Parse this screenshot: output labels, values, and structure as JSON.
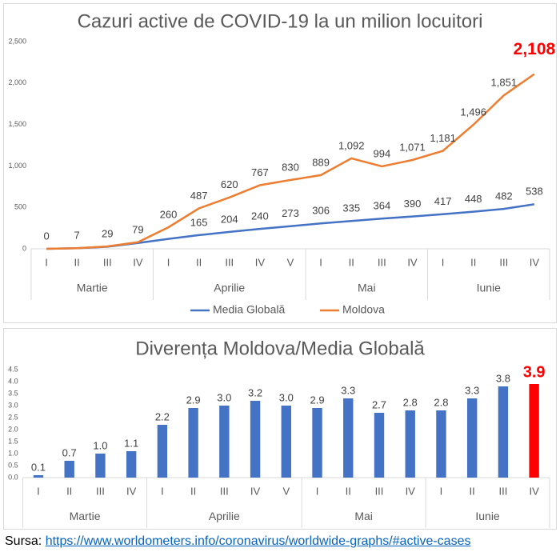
{
  "chart_data": [
    {
      "type": "line",
      "title": "Cazuri active de COVID-19 la un milion locuitori",
      "groups": [
        {
          "name": "Martie",
          "categories": [
            "I",
            "II",
            "III",
            "IV"
          ]
        },
        {
          "name": "Aprilie",
          "categories": [
            "I",
            "II",
            "III",
            "IV",
            "V"
          ]
        },
        {
          "name": "Mai",
          "categories": [
            "I",
            "II",
            "III",
            "IV"
          ]
        },
        {
          "name": "Iunie",
          "categories": [
            "I",
            "II",
            "III",
            "IV"
          ]
        }
      ],
      "series": [
        {
          "name": "Media Globală",
          "color": "#4472c4",
          "values": [
            0,
            7,
            25,
            70,
            120,
            165,
            204,
            240,
            273,
            306,
            335,
            364,
            390,
            417,
            448,
            482,
            538
          ],
          "value_labels": [
            null,
            null,
            null,
            null,
            null,
            "165",
            "204",
            "240",
            "273",
            "306",
            "335",
            "364",
            "390",
            "417",
            "448",
            "482",
            "538"
          ]
        },
        {
          "name": "Moldova",
          "color": "#ed7d31",
          "values": [
            0,
            7,
            29,
            79,
            260,
            487,
            620,
            767,
            830,
            889,
            1092,
            994,
            1071,
            1181,
            1496,
            1851,
            2108
          ],
          "value_labels": [
            "0",
            "7",
            "29",
            "79",
            "260",
            "487",
            "620",
            "767",
            "830",
            "889",
            "1,092",
            "994",
            "1,071",
            "1,181",
            "1,496",
            "1,851",
            "2,108"
          ]
        }
      ],
      "highlight_color": "#ff0000",
      "ylim": [
        0,
        2500
      ],
      "yticks": [
        0,
        500,
        {
          "value": 1000,
          "label": "1,000"
        },
        {
          "value": 1500,
          "label": "1,500"
        },
        {
          "value": 2000,
          "label": "2,000"
        },
        {
          "value": 2500,
          "label": "2,500"
        }
      ],
      "grid": false,
      "legend": "bottom"
    },
    {
      "type": "bar",
      "title": "Diverența Moldova/Media Globală",
      "groups": [
        {
          "name": "Martie",
          "categories": [
            "I",
            "II",
            "III",
            "IV"
          ]
        },
        {
          "name": "Aprilie",
          "categories": [
            "I",
            "II",
            "III",
            "IV",
            "V"
          ]
        },
        {
          "name": "Mai",
          "categories": [
            "I",
            "II",
            "III",
            "IV"
          ]
        },
        {
          "name": "Iunie",
          "categories": [
            "I",
            "II",
            "III",
            "IV"
          ]
        }
      ],
      "values": [
        0.1,
        0.7,
        1.0,
        1.1,
        2.2,
        2.9,
        3.0,
        3.2,
        3.0,
        2.9,
        3.3,
        2.7,
        2.8,
        2.8,
        3.3,
        3.8,
        3.9
      ],
      "value_labels": [
        "0.1",
        "0.7",
        "1.0",
        "1.1",
        "2.2",
        "2.9",
        "3.0",
        "3.2",
        "3.0",
        "2.9",
        "3.3",
        "2.7",
        "2.8",
        "2.8",
        "3.3",
        "3.8",
        "3.9"
      ],
      "color": "#4472c4",
      "highlight_color": "#ff0000",
      "ylim": [
        0,
        4.5
      ],
      "yticks": [
        {
          "value": 0,
          "label": "0.0"
        },
        0.5,
        {
          "value": 1,
          "label": "1.0"
        },
        1.5,
        {
          "value": 2,
          "label": "2.0"
        },
        2.5,
        {
          "value": 3,
          "label": "3.0"
        },
        3.5,
        {
          "value": 4,
          "label": "4.0"
        },
        4.5
      ],
      "grid": false
    }
  ],
  "source": {
    "label": "Sursa:",
    "url": "https://www.worldometers.info/coronavirus/worldwide-graphs/#active-cases"
  }
}
